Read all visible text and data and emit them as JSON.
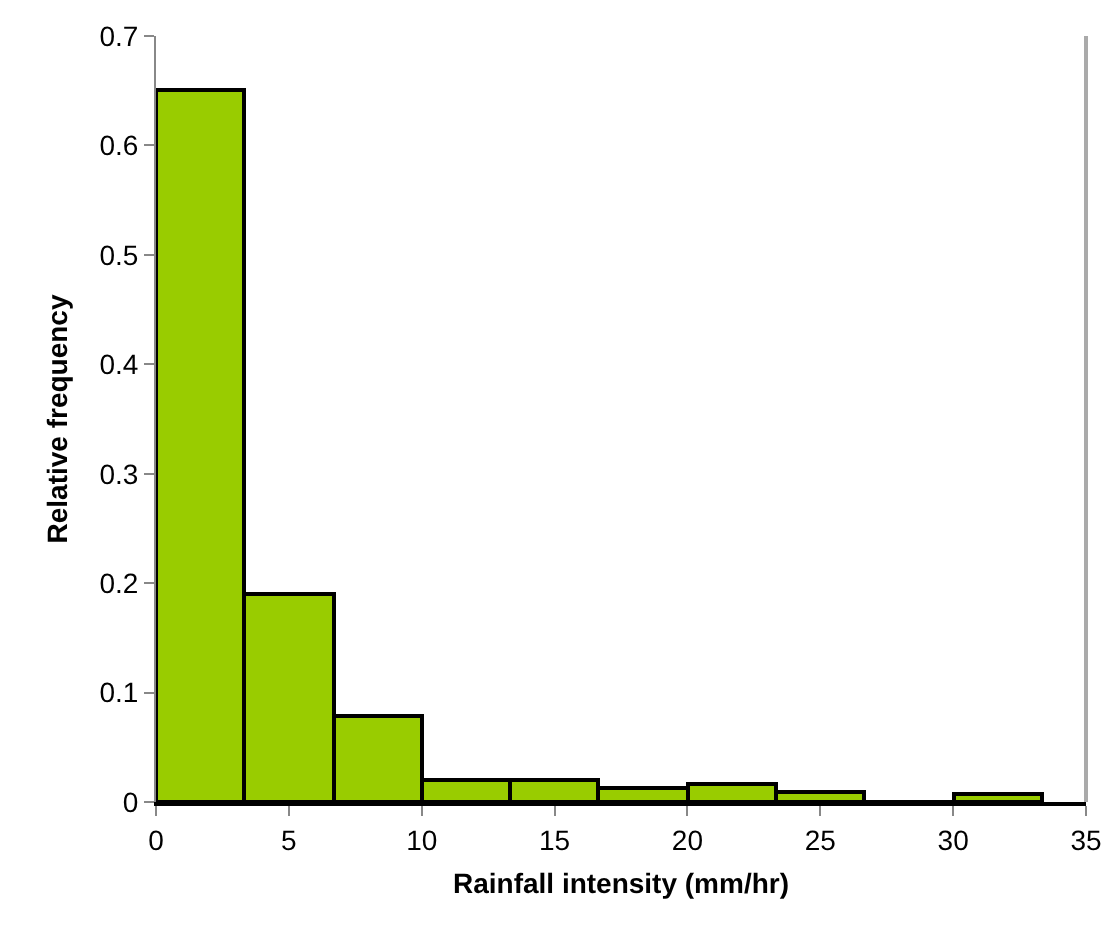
{
  "chart_data": {
    "type": "histogram",
    "xlabel": "Rainfall intensity (mm/hr)",
    "ylabel": "Relative frequency",
    "bins": [
      0,
      3.333,
      6.667,
      10,
      13.333,
      16.667,
      20,
      23.333,
      26.667,
      30,
      33.333
    ],
    "values": [
      0.65,
      0.19,
      0.078,
      0.021,
      0.021,
      0.012,
      0.016,
      0.009,
      0,
      0.007
    ],
    "color": "#99cc00",
    "xlim": [
      0,
      35
    ],
    "xticks": [
      0,
      5,
      10,
      15,
      20,
      25,
      30,
      35
    ],
    "ylim": [
      0,
      0.7
    ],
    "yticks": [
      0,
      0.1,
      0.2,
      0.3,
      0.4,
      0.5,
      0.6,
      0.7
    ]
  }
}
